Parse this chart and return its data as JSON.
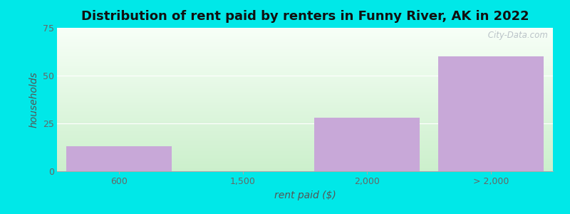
{
  "categories": [
    "600",
    "1,500",
    "2,000",
    "> 2,000"
  ],
  "values": [
    13,
    0,
    28,
    60
  ],
  "bar_color": "#c8a8d8",
  "bar_edgecolor": "#c8a8d8",
  "title": "Distribution of rent paid by renters in Funny River, AK in 2022",
  "xlabel": "rent paid ($)",
  "ylabel": "households",
  "ylim": [
    0,
    75
  ],
  "yticks": [
    0,
    25,
    50,
    75
  ],
  "background_color": "#00e8e8",
  "grid_color": "#dddddd",
  "title_fontsize": 13,
  "label_fontsize": 10,
  "tick_fontsize": 9,
  "bar_width": 0.85,
  "watermark": " City-Data.com"
}
